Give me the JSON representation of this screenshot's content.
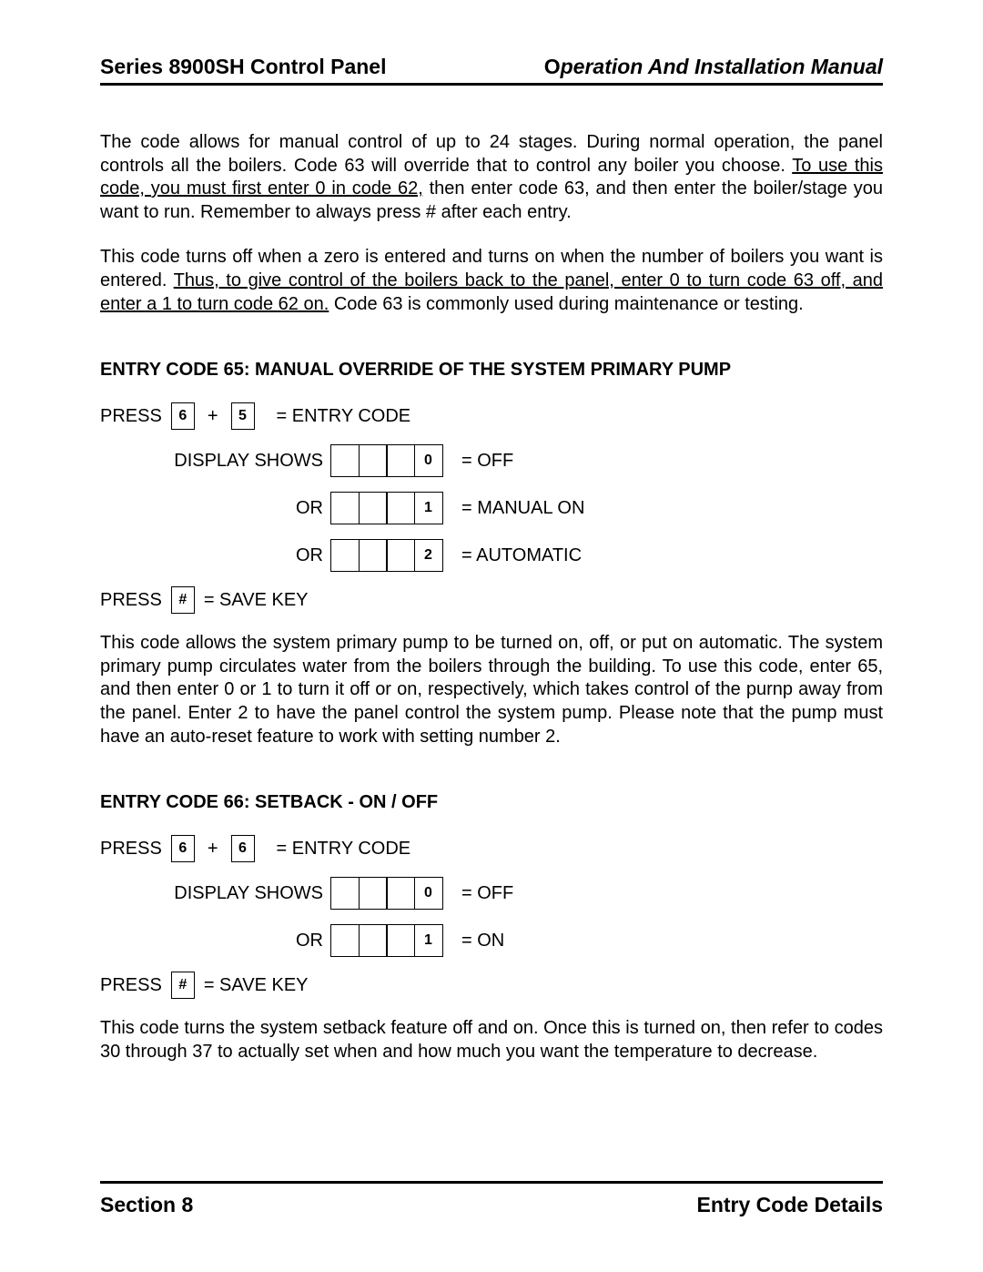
{
  "header": {
    "left": "Series 8900SH Control Panel",
    "right_bold": "O",
    "right_italic": "peration And Installation Manual"
  },
  "para1_pre": "The code allows for manual control of up to 24 stages. During normal operation, the panel controls all the boilers. Code 63 will override that to control any boiler you choose. ",
  "para1_under": "To use this code, you must first enter 0 in code 62,",
  "para1_post": " then enter code 63, and then enter the boiler/stage you want to run. Remember to always press # after each entry.",
  "para2_pre": "This code turns off when a zero is entered and turns on when the number of boilers you want is entered. ",
  "para2_under": "Thus, to give control of the boilers back to the panel, enter 0 to turn code 63 off, and enter a 1 to turn code 62 on.",
  "para2_post": "  Code 63 is commonly used during maintenance or testing.",
  "code65": {
    "title": "ENTRY CODE 65:   MANUAL OVERRIDE OF THE SYSTEM PRIMARY PUMP",
    "press_label": "PRESS",
    "key1": "6",
    "plus": "+",
    "key2": "5",
    "entry_label": "= ENTRY CODE",
    "display_label": "DISPLAY SHOWS",
    "or_label": "OR",
    "rows": [
      {
        "digit": "0",
        "meaning": "= OFF"
      },
      {
        "digit": "1",
        "meaning": "= MANUAL ON"
      },
      {
        "digit": "2",
        "meaning": "= AUTOMATIC"
      }
    ],
    "save_press": "PRESS",
    "save_key": "#",
    "save_label": "= SAVE KEY",
    "para": "This code allows the system primary pump to be turned on, off, or put on automatic. The system primary pump circulates water from the boilers through the building. To use this code, enter 65, and then enter 0 or 1 to turn it off or on, respectively, which takes control of the purnp away from the panel. Enter 2 to have the panel control the system pump.  Please note that the pump must have an auto-reset feature to work with setting number 2."
  },
  "code66": {
    "title": "ENTRY CODE 66:   SETBACK - ON / OFF",
    "press_label": "PRESS",
    "key1": "6",
    "plus": "+",
    "key2": "6",
    "entry_label": "= ENTRY CODE",
    "display_label": "DISPLAY SHOWS",
    "or_label": "OR",
    "rows": [
      {
        "digit": "0",
        "meaning": "= OFF"
      },
      {
        "digit": "1",
        "meaning": "= ON"
      }
    ],
    "save_press": "PRESS",
    "save_key": "#",
    "save_label": "= SAVE KEY",
    "para": "This code turns the system setback feature off and on.  Once this is turned on, then refer to codes 30 through 37 to actually set when and how much you want the temperature to decrease."
  },
  "footer": {
    "left": "Section 8",
    "right": "Entry Code Details"
  }
}
